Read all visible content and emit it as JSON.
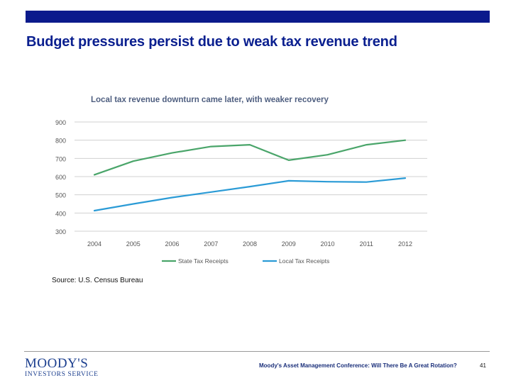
{
  "slide": {
    "title": "Budget pressures persist due to weak tax revenue trend",
    "source": "Source: U.S. Census Bureau",
    "footer_text": "Moody's Asset Management Conference: Will There Be A Great Rotation?",
    "page_number": "41",
    "logo": {
      "name": "MOODY'S",
      "subtitle": "INVESTORS SERVICE"
    },
    "colors": {
      "bar": "#0b1a8c",
      "title": "#0a1f8f"
    }
  },
  "chart_data": {
    "type": "line",
    "title": "Local tax revenue downturn came later, with weaker recovery",
    "x": [
      "2004",
      "2005",
      "2006",
      "2007",
      "2008",
      "2009",
      "2010",
      "2011",
      "2012"
    ],
    "series": [
      {
        "name": "State Tax Receipts",
        "color": "#4aa56a",
        "values": [
          610,
          685,
          730,
          765,
          775,
          690,
          720,
          775,
          800
        ]
      },
      {
        "name": "Local Tax Receipts",
        "color": "#2b9bd6",
        "values": [
          413,
          450,
          485,
          515,
          545,
          577,
          572,
          570,
          592
        ]
      }
    ],
    "yticks": [
      "900",
      "800",
      "700",
      "600",
      "500",
      "400",
      "300"
    ],
    "ylim": [
      300,
      900
    ],
    "grid": true,
    "legend": "bottom",
    "xlabel": "",
    "ylabel": ""
  }
}
